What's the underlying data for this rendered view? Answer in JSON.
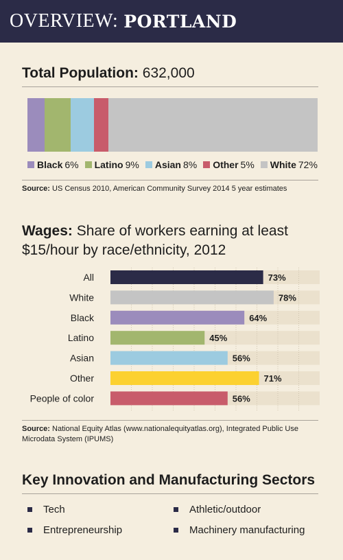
{
  "header": {
    "title_light": "OVERVIEW:",
    "title_bold": "PORTLAND"
  },
  "population": {
    "label": "Total Population:",
    "value": "632,000",
    "segments": [
      {
        "name": "Black",
        "value": 6,
        "text": "6%",
        "color": "#9b8cbc"
      },
      {
        "name": "Latino",
        "value": 9,
        "text": "9%",
        "color": "#a2b66e"
      },
      {
        "name": "Asian",
        "value": 8,
        "text": "8%",
        "color": "#9ccbe0"
      },
      {
        "name": "Other",
        "value": 5,
        "text": "5%",
        "color": "#c85c6b"
      },
      {
        "name": "White",
        "value": 72,
        "text": "72%",
        "color": "#c4c4c4"
      }
    ],
    "source_label": "Source:",
    "source_text": "US Census 2010, American Community Survey 2014 5 year estimates"
  },
  "wages": {
    "title_bold": "Wages:",
    "title_line1": "Share of workers earning at least",
    "title_line2": "$15/hour by race/ethnicity, 2012",
    "source_label": "Source:",
    "source_text_line1": "National Equity Atlas (www.nationalequityatlas.org), Integrated Public Use",
    "source_text_line2": "Microdata System (IPUMS)"
  },
  "chart_data": {
    "type": "bar",
    "orientation": "horizontal",
    "categories": [
      "All",
      "White",
      "Black",
      "Latino",
      "Asian",
      "Other",
      "People of color"
    ],
    "values": [
      73,
      78,
      64,
      45,
      56,
      71,
      56
    ],
    "value_labels": [
      "73%",
      "78%",
      "64%",
      "45%",
      "56%",
      "71%",
      "56%"
    ],
    "colors": [
      "#2b2b47",
      "#c4c4c4",
      "#9b8cbc",
      "#a2b66e",
      "#9ccbe0",
      "#fcd130",
      "#c85c6b"
    ],
    "track_color": "#ebe1cd",
    "xlim": [
      0,
      100
    ],
    "grid": true
  },
  "sectors": {
    "title": "Key Innovation and Manufacturing Sectors",
    "items": [
      "Tech",
      "Athletic/outdoor",
      "Entrepreneurship",
      "Machinery manufacturing"
    ]
  }
}
